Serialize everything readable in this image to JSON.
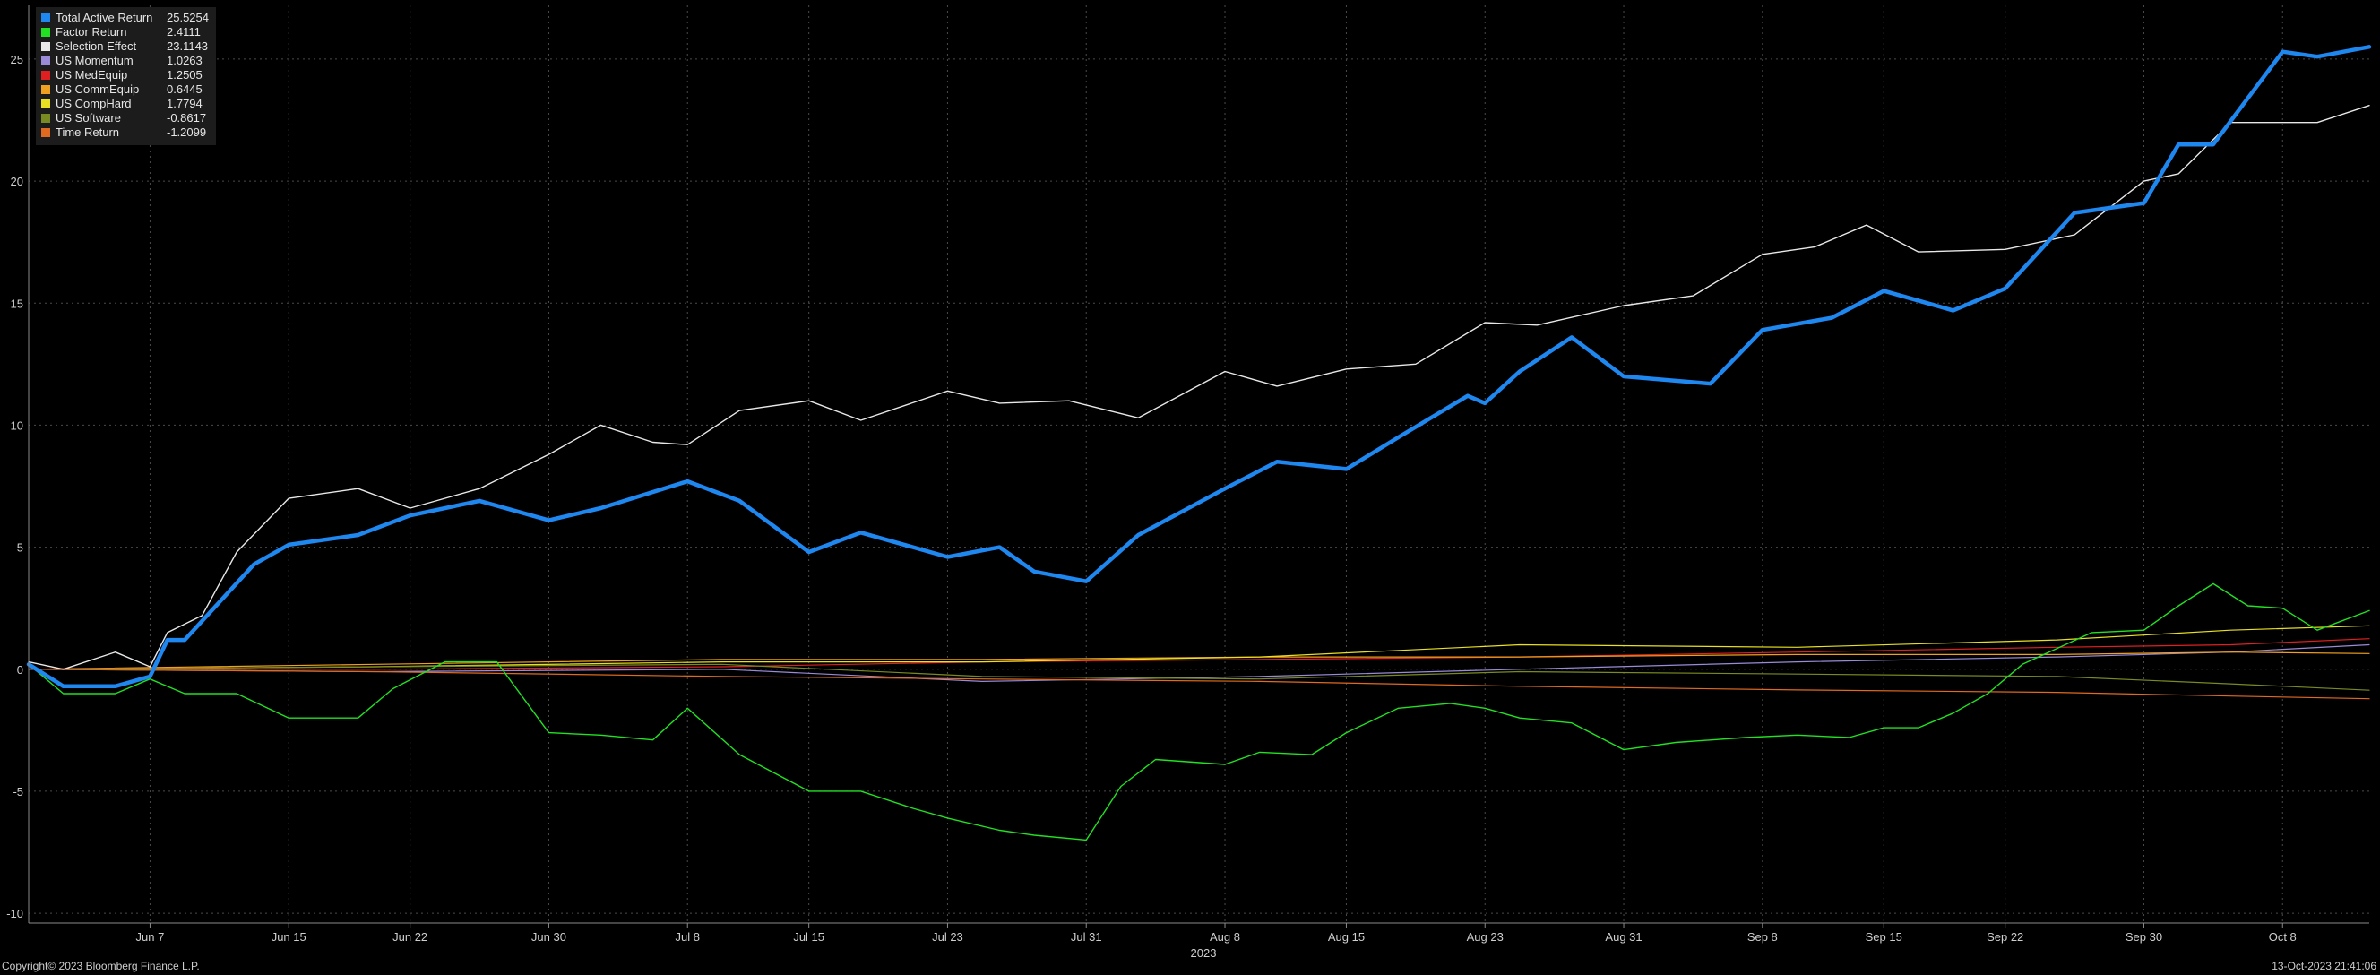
{
  "chart_data": {
    "type": "line",
    "x_unit": "date",
    "x_ticks": [
      "Jun 7",
      "Jun 15",
      "Jun 22",
      "Jun 30",
      "Jul 8",
      "Jul 15",
      "Jul 23",
      "Jul 31",
      "Aug 8",
      "Aug 15",
      "Aug 23",
      "Aug 31",
      "Sep 8",
      "Sep 15",
      "Sep 22",
      "Sep 30",
      "Oct 8"
    ],
    "x_tick_dates": [
      "2023-06-07",
      "2023-06-15",
      "2023-06-22",
      "2023-06-30",
      "2023-07-08",
      "2023-07-15",
      "2023-07-23",
      "2023-07-31",
      "2023-08-08",
      "2023-08-15",
      "2023-08-23",
      "2023-08-31",
      "2023-09-08",
      "2023-09-15",
      "2023-09-22",
      "2023-09-30",
      "2023-10-08"
    ],
    "x_year_label": "2023",
    "xlim": [
      "2023-05-31",
      "2023-10-13"
    ],
    "ylim": [
      -10.4,
      27.2
    ],
    "y_ticks": [
      -10,
      -5,
      0,
      5,
      10,
      15,
      20,
      25
    ],
    "y_tick_labels": [
      "-10",
      "-5",
      "0",
      "5",
      "10",
      "15",
      "20",
      "25"
    ],
    "grid": true,
    "legend_position": "top-left",
    "series": [
      {
        "name": "Total Active Return",
        "label_value": "25.5254",
        "color": "#1f87f0",
        "width": 4.5,
        "x": [
          "2023-05-31",
          "2023-06-02",
          "2023-06-05",
          "2023-06-07",
          "2023-06-08",
          "2023-06-09",
          "2023-06-13",
          "2023-06-15",
          "2023-06-19",
          "2023-06-22",
          "2023-06-26",
          "2023-06-30",
          "2023-07-03",
          "2023-07-08",
          "2023-07-11",
          "2023-07-15",
          "2023-07-18",
          "2023-07-23",
          "2023-07-26",
          "2023-07-28",
          "2023-07-31",
          "2023-08-03",
          "2023-08-08",
          "2023-08-11",
          "2023-08-15",
          "2023-08-18",
          "2023-08-22",
          "2023-08-23",
          "2023-08-25",
          "2023-08-28",
          "2023-08-31",
          "2023-09-05",
          "2023-09-08",
          "2023-09-12",
          "2023-09-15",
          "2023-09-19",
          "2023-09-22",
          "2023-09-26",
          "2023-09-30",
          "2023-10-02",
          "2023-10-04",
          "2023-10-08",
          "2023-10-10",
          "2023-10-13"
        ],
        "y": [
          0.2,
          -0.7,
          -0.7,
          -0.3,
          1.2,
          1.2,
          4.3,
          5.1,
          5.5,
          6.3,
          6.9,
          6.1,
          6.6,
          7.7,
          6.9,
          4.8,
          5.6,
          4.6,
          5.0,
          4.0,
          3.6,
          5.5,
          7.4,
          8.5,
          8.2,
          9.5,
          11.2,
          10.9,
          12.2,
          13.6,
          12.0,
          11.7,
          13.9,
          14.4,
          15.5,
          14.7,
          15.6,
          18.7,
          19.1,
          21.5,
          21.5,
          25.3,
          25.1,
          25.5
        ]
      },
      {
        "name": "Factor Return",
        "label_value": "2.4111",
        "color": "#22e022",
        "width": 1.4,
        "x": [
          "2023-05-31",
          "2023-06-02",
          "2023-06-05",
          "2023-06-07",
          "2023-06-09",
          "2023-06-12",
          "2023-06-15",
          "2023-06-19",
          "2023-06-21",
          "2023-06-24",
          "2023-06-27",
          "2023-06-30",
          "2023-07-03",
          "2023-07-06",
          "2023-07-08",
          "2023-07-11",
          "2023-07-15",
          "2023-07-18",
          "2023-07-21",
          "2023-07-23",
          "2023-07-26",
          "2023-07-28",
          "2023-07-31",
          "2023-08-02",
          "2023-08-04",
          "2023-08-08",
          "2023-08-10",
          "2023-08-13",
          "2023-08-15",
          "2023-08-18",
          "2023-08-21",
          "2023-08-23",
          "2023-08-25",
          "2023-08-28",
          "2023-08-31",
          "2023-09-03",
          "2023-09-07",
          "2023-09-10",
          "2023-09-13",
          "2023-09-15",
          "2023-09-17",
          "2023-09-19",
          "2023-09-21",
          "2023-09-23",
          "2023-09-27",
          "2023-09-30",
          "2023-10-02",
          "2023-10-04",
          "2023-10-06",
          "2023-10-08",
          "2023-10-10",
          "2023-10-13"
        ],
        "y": [
          0.2,
          -1.0,
          -1.0,
          -0.4,
          -1.0,
          -1.0,
          -2.0,
          -2.0,
          -0.8,
          0.3,
          0.3,
          -2.6,
          -2.7,
          -2.9,
          -1.6,
          -3.5,
          -5.0,
          -5.0,
          -5.7,
          -6.1,
          -6.6,
          -6.8,
          -7.0,
          -4.8,
          -3.7,
          -3.9,
          -3.4,
          -3.5,
          -2.6,
          -1.6,
          -1.4,
          -1.6,
          -2.0,
          -2.2,
          -3.3,
          -3.0,
          -2.8,
          -2.7,
          -2.8,
          -2.4,
          -2.4,
          -1.8,
          -1.0,
          0.2,
          1.5,
          1.6,
          2.6,
          3.5,
          2.6,
          2.5,
          1.6,
          2.4
        ]
      },
      {
        "name": "Selection Effect",
        "label_value": "23.1143",
        "color": "#e8e8e8",
        "width": 1.4,
        "x": [
          "2023-05-31",
          "2023-06-02",
          "2023-06-05",
          "2023-06-07",
          "2023-06-08",
          "2023-06-10",
          "2023-06-12",
          "2023-06-15",
          "2023-06-19",
          "2023-06-22",
          "2023-06-26",
          "2023-06-30",
          "2023-07-03",
          "2023-07-06",
          "2023-07-08",
          "2023-07-11",
          "2023-07-15",
          "2023-07-18",
          "2023-07-23",
          "2023-07-26",
          "2023-07-30",
          "2023-08-03",
          "2023-08-08",
          "2023-08-11",
          "2023-08-15",
          "2023-08-19",
          "2023-08-23",
          "2023-08-26",
          "2023-08-31",
          "2023-09-04",
          "2023-09-08",
          "2023-09-11",
          "2023-09-14",
          "2023-09-17",
          "2023-09-22",
          "2023-09-26",
          "2023-09-30",
          "2023-10-02",
          "2023-10-05",
          "2023-10-08",
          "2023-10-10",
          "2023-10-13"
        ],
        "y": [
          0.3,
          0.0,
          0.7,
          0.1,
          1.5,
          2.2,
          4.8,
          7.0,
          7.4,
          6.6,
          7.4,
          8.8,
          10.0,
          9.3,
          9.2,
          10.6,
          11.0,
          10.2,
          11.4,
          10.9,
          11.0,
          10.3,
          12.2,
          11.6,
          12.3,
          12.5,
          14.2,
          14.1,
          14.9,
          15.3,
          17.0,
          17.3,
          18.2,
          17.1,
          17.2,
          17.8,
          20.0,
          20.3,
          22.4,
          22.4,
          22.4,
          23.1
        ]
      },
      {
        "name": "US Momentum",
        "label_value": "1.0263",
        "color": "#9a8ad8",
        "width": 1.2,
        "x": [
          "2023-05-31",
          "2023-06-20",
          "2023-07-10",
          "2023-07-25",
          "2023-08-10",
          "2023-08-25",
          "2023-09-10",
          "2023-09-25",
          "2023-10-05",
          "2023-10-13"
        ],
        "y": [
          0.0,
          -0.1,
          0.0,
          -0.5,
          -0.3,
          0.0,
          0.3,
          0.5,
          0.7,
          1.0
        ]
      },
      {
        "name": "US MedEquip",
        "label_value": "1.2505",
        "color": "#e02020",
        "width": 1.2,
        "x": [
          "2023-05-31",
          "2023-06-20",
          "2023-07-10",
          "2023-07-25",
          "2023-08-10",
          "2023-08-25",
          "2023-09-10",
          "2023-09-25",
          "2023-10-05",
          "2023-10-13"
        ],
        "y": [
          0.0,
          0.0,
          0.1,
          0.3,
          0.4,
          0.5,
          0.7,
          0.9,
          1.0,
          1.25
        ]
      },
      {
        "name": "US CommEquip",
        "label_value": "0.6445",
        "color": "#f0a020",
        "width": 1.2,
        "x": [
          "2023-05-31",
          "2023-06-20",
          "2023-07-10",
          "2023-07-25",
          "2023-08-10",
          "2023-08-25",
          "2023-09-10",
          "2023-09-25",
          "2023-10-05",
          "2023-10-13"
        ],
        "y": [
          0.0,
          0.2,
          0.4,
          0.4,
          0.5,
          0.5,
          0.6,
          0.6,
          0.7,
          0.64
        ]
      },
      {
        "name": "US CompHard",
        "label_value": "1.7794",
        "color": "#e8e020",
        "width": 1.2,
        "x": [
          "2023-05-31",
          "2023-06-20",
          "2023-07-10",
          "2023-07-25",
          "2023-08-10",
          "2023-08-25",
          "2023-09-10",
          "2023-09-25",
          "2023-10-05",
          "2023-10-13"
        ],
        "y": [
          0.0,
          0.1,
          0.3,
          0.3,
          0.5,
          1.0,
          0.9,
          1.2,
          1.6,
          1.78
        ]
      },
      {
        "name": "US Software",
        "label_value": "-0.8617",
        "color": "#7a8a22",
        "width": 1.2,
        "x": [
          "2023-05-31",
          "2023-06-20",
          "2023-07-10",
          "2023-07-25",
          "2023-08-10",
          "2023-08-25",
          "2023-09-10",
          "2023-09-25",
          "2023-10-05",
          "2023-10-13"
        ],
        "y": [
          0.0,
          0.1,
          0.2,
          -0.3,
          -0.4,
          -0.1,
          -0.2,
          -0.3,
          -0.6,
          -0.86
        ]
      },
      {
        "name": "Time Return",
        "label_value": "-1.2099",
        "color": "#e06a20",
        "width": 1.2,
        "x": [
          "2023-05-31",
          "2023-06-20",
          "2023-07-10",
          "2023-07-25",
          "2023-08-10",
          "2023-08-25",
          "2023-09-10",
          "2023-09-25",
          "2023-10-05",
          "2023-10-13"
        ],
        "y": [
          0.0,
          -0.1,
          -0.3,
          -0.4,
          -0.5,
          -0.7,
          -0.85,
          -0.95,
          -1.1,
          -1.21
        ]
      }
    ]
  },
  "footer": {
    "copyright": "Copyright© 2023 Bloomberg Finance L.P.",
    "timestamp": "13-Oct-2023 21:41:06"
  }
}
